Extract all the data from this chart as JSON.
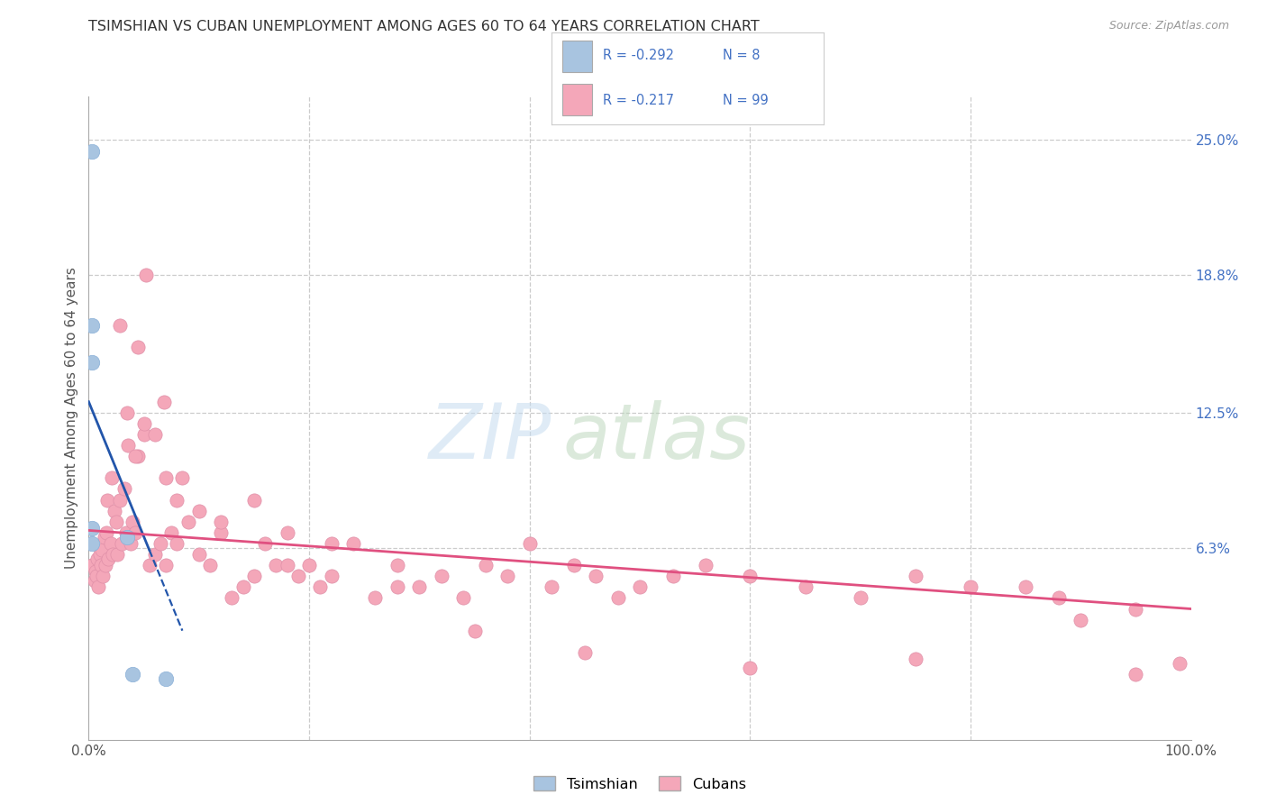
{
  "title": "TSIMSHIAN VS CUBAN UNEMPLOYMENT AMONG AGES 60 TO 64 YEARS CORRELATION CHART",
  "source": "Source: ZipAtlas.com",
  "ylabel": "Unemployment Among Ages 60 to 64 years",
  "xlim": [
    0,
    100
  ],
  "ylim": [
    -2.5,
    27.0
  ],
  "x_tick_labels": [
    "0.0%",
    "100.0%"
  ],
  "y_tick_labels": [
    "6.3%",
    "12.5%",
    "18.8%",
    "25.0%"
  ],
  "y_tick_values": [
    6.3,
    12.5,
    18.8,
    25.0
  ],
  "background_color": "#ffffff",
  "tsimshian_color": "#a8c4e0",
  "cuban_color": "#f4a7b9",
  "tsimshian_line_color": "#2255aa",
  "cuban_line_color": "#e05080",
  "grid_color": "#cccccc",
  "title_color": "#333333",
  "axis_label_color": "#555555",
  "right_axis_label_color": "#4472c4",
  "legend_text_color": "#4472c4",
  "tsimshian_r": "-0.292",
  "tsimshian_n": "8",
  "cuban_r": "-0.217",
  "cuban_n": "99",
  "tsimshian_points_x": [
    0.3,
    0.3,
    0.3,
    0.3,
    0.3,
    3.5,
    4.0,
    7.0
  ],
  "tsimshian_points_y": [
    24.5,
    16.5,
    14.8,
    7.2,
    6.5,
    6.8,
    0.5,
    0.3
  ],
  "cuban_points_x": [
    0.3,
    0.5,
    0.6,
    0.7,
    0.8,
    0.9,
    1.0,
    1.1,
    1.2,
    1.3,
    1.4,
    1.5,
    1.6,
    1.7,
    1.8,
    2.0,
    2.1,
    2.2,
    2.3,
    2.5,
    2.6,
    2.8,
    3.0,
    3.2,
    3.4,
    3.6,
    3.8,
    4.0,
    4.2,
    4.5,
    5.0,
    5.5,
    6.0,
    6.5,
    7.0,
    7.5,
    8.0,
    9.0,
    10.0,
    11.0,
    12.0,
    13.0,
    14.0,
    15.0,
    16.0,
    17.0,
    18.0,
    19.0,
    20.0,
    21.0,
    22.0,
    24.0,
    26.0,
    28.0,
    30.0,
    32.0,
    34.0,
    36.0,
    38.0,
    40.0,
    42.0,
    44.0,
    46.0,
    48.0,
    50.0,
    53.0,
    56.0,
    60.0,
    65.0,
    70.0,
    75.0,
    80.0,
    85.0,
    90.0,
    95.0,
    4.5,
    5.2,
    6.8,
    8.5,
    2.8,
    3.5,
    4.2,
    5.0,
    6.0,
    7.0,
    8.0,
    10.0,
    12.0,
    15.0,
    18.0,
    22.0,
    28.0,
    35.0,
    45.0,
    60.0,
    75.0,
    88.0,
    95.0,
    99.0
  ],
  "cuban_points_y": [
    5.5,
    4.8,
    5.2,
    5.0,
    5.8,
    4.5,
    6.0,
    5.5,
    6.2,
    5.0,
    6.8,
    5.5,
    7.0,
    8.5,
    5.8,
    6.5,
    9.5,
    6.0,
    8.0,
    7.5,
    6.0,
    8.5,
    6.5,
    9.0,
    7.0,
    11.0,
    6.5,
    7.5,
    7.0,
    10.5,
    11.5,
    5.5,
    6.0,
    6.5,
    5.5,
    7.0,
    6.5,
    7.5,
    6.0,
    5.5,
    7.0,
    4.0,
    4.5,
    5.0,
    6.5,
    5.5,
    5.5,
    5.0,
    5.5,
    4.5,
    5.0,
    6.5,
    4.0,
    5.5,
    4.5,
    5.0,
    4.0,
    5.5,
    5.0,
    6.5,
    4.5,
    5.5,
    5.0,
    4.0,
    4.5,
    5.0,
    5.5,
    5.0,
    4.5,
    4.0,
    5.0,
    4.5,
    4.5,
    3.0,
    0.5,
    15.5,
    18.8,
    13.0,
    9.5,
    16.5,
    12.5,
    10.5,
    12.0,
    11.5,
    9.5,
    8.5,
    8.0,
    7.5,
    8.5,
    7.0,
    6.5,
    4.5,
    2.5,
    1.5,
    0.8,
    1.2,
    4.0,
    3.5,
    1.0
  ],
  "tsim_reg_x0": 0.0,
  "tsim_reg_y0": 13.0,
  "tsim_reg_x1": 5.5,
  "tsim_reg_y1": 6.2,
  "tsim_dash_x0": 5.5,
  "tsim_dash_y0": 6.2,
  "tsim_dash_x1": 8.5,
  "tsim_dash_y1": 2.5,
  "cuban_reg_x0": 0.0,
  "cuban_reg_y0": 7.1,
  "cuban_reg_x1": 100.0,
  "cuban_reg_y1": 3.5
}
